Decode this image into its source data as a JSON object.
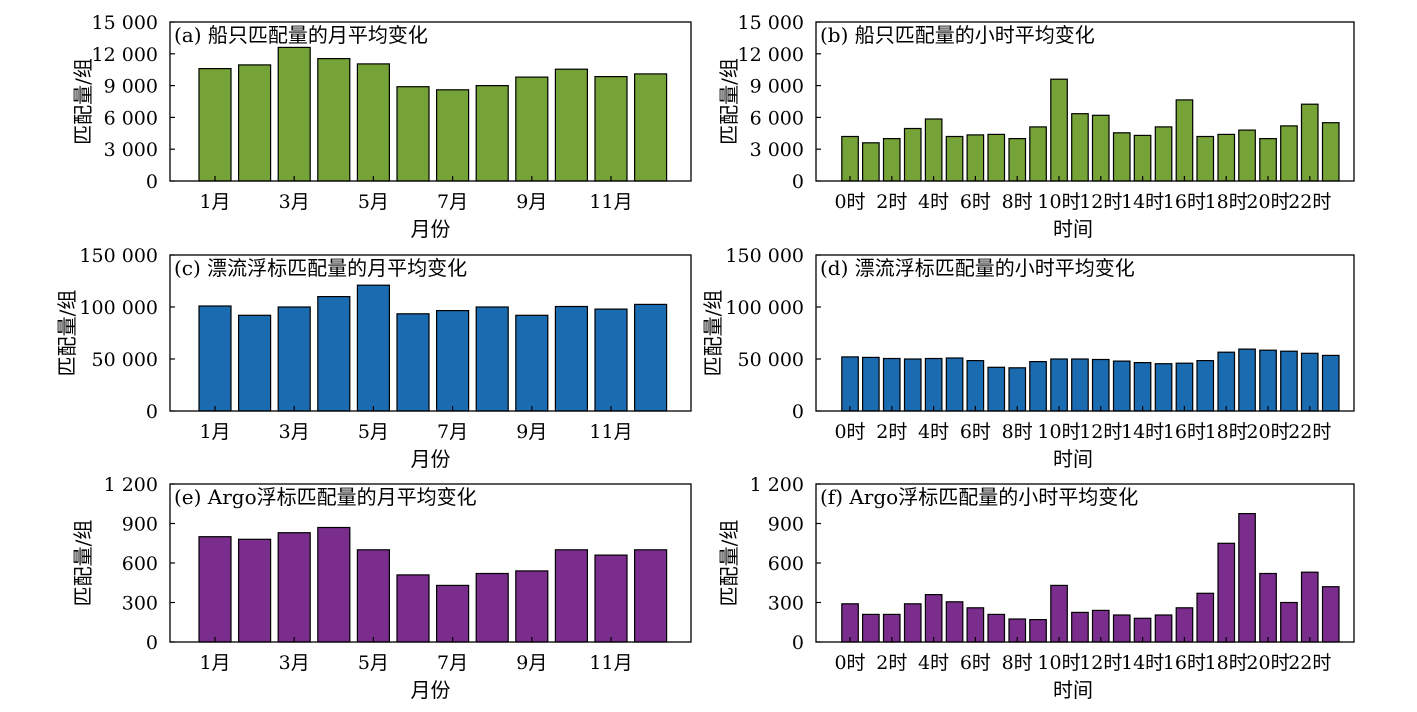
{
  "chart_data": [
    {
      "type": "bar",
      "title": "(a) 船只匹配量的月平均变化",
      "xlabel": "月份",
      "ylabel": "匹配量/组",
      "color": "#76a337",
      "ylim": [
        0,
        15000
      ],
      "yticks": [
        0,
        3000,
        6000,
        9000,
        12000,
        15000
      ],
      "ytick_labels": [
        "0",
        "3 000",
        "6 000",
        "9 000",
        "12 000",
        "15 000"
      ],
      "categories": [
        "1月",
        "2月",
        "3月",
        "4月",
        "5月",
        "6月",
        "7月",
        "8月",
        "9月",
        "10月",
        "11月",
        "12月"
      ],
      "xtick_labels": [
        "1月",
        "",
        "3月",
        "",
        "5月",
        "",
        "7月",
        "",
        "9月",
        "",
        "11月",
        ""
      ],
      "values": [
        10600,
        10950,
        12600,
        11550,
        11050,
        8900,
        8600,
        9000,
        9800,
        10550,
        9850,
        10100
      ]
    },
    {
      "type": "bar",
      "title": "(b) 船只匹配量的小时平均变化",
      "xlabel": "时间",
      "ylabel": "匹配量/组",
      "color": "#76a337",
      "ylim": [
        0,
        15000
      ],
      "yticks": [
        0,
        3000,
        6000,
        9000,
        12000,
        15000
      ],
      "ytick_labels": [
        "0",
        "3 000",
        "6 000",
        "9 000",
        "12 000",
        "15 000"
      ],
      "categories": [
        "0时",
        "1时",
        "2时",
        "3时",
        "4时",
        "5时",
        "6时",
        "7时",
        "8时",
        "9时",
        "10时",
        "11时",
        "12时",
        "13时",
        "14时",
        "15时",
        "16时",
        "17时",
        "18时",
        "19时",
        "20时",
        "21时",
        "22时",
        "23时"
      ],
      "xtick_labels": [
        "0时",
        "",
        "2时",
        "",
        "4时",
        "",
        "6时",
        "",
        "8时",
        "",
        "10时",
        "",
        "12时",
        "",
        "14时",
        "",
        "16时",
        "",
        "18时",
        "",
        "20时",
        "",
        "22时",
        ""
      ],
      "values": [
        4200,
        3600,
        4000,
        4950,
        5850,
        4200,
        4350,
        4400,
        4000,
        5100,
        9600,
        6350,
        6200,
        4550,
        4300,
        5100,
        7650,
        4200,
        4400,
        4800,
        4000,
        5200,
        7250,
        5500
      ]
    },
    {
      "type": "bar",
      "title": "(c) 漂流浮标匹配量的月平均变化",
      "xlabel": "月份",
      "ylabel": "匹配量/组",
      "color": "#1b6bb0",
      "ylim": [
        0,
        150000
      ],
      "yticks": [
        0,
        50000,
        100000,
        150000
      ],
      "ytick_labels": [
        "0",
        "50 000",
        "100 000",
        "150 000"
      ],
      "categories": [
        "1月",
        "2月",
        "3月",
        "4月",
        "5月",
        "6月",
        "7月",
        "8月",
        "9月",
        "10月",
        "11月",
        "12月"
      ],
      "xtick_labels": [
        "1月",
        "",
        "3月",
        "",
        "5月",
        "",
        "7月",
        "",
        "9月",
        "",
        "11月",
        ""
      ],
      "values": [
        101000,
        92000,
        100000,
        110000,
        121000,
        93500,
        96500,
        100000,
        92000,
        100500,
        98000,
        102500
      ]
    },
    {
      "type": "bar",
      "title": "(d) 漂流浮标匹配量的小时平均变化",
      "xlabel": "时间",
      "ylabel": "匹配量/组",
      "color": "#1b6bb0",
      "ylim": [
        0,
        150000
      ],
      "yticks": [
        0,
        50000,
        100000,
        150000
      ],
      "ytick_labels": [
        "0",
        "50 000",
        "100 000",
        "150 000"
      ],
      "categories": [
        "0时",
        "1时",
        "2时",
        "3时",
        "4时",
        "5时",
        "6时",
        "7时",
        "8时",
        "9时",
        "10时",
        "11时",
        "12时",
        "13时",
        "14时",
        "15时",
        "16时",
        "17时",
        "18时",
        "19时",
        "20时",
        "21时",
        "22时",
        "23时"
      ],
      "xtick_labels": [
        "0时",
        "",
        "2时",
        "",
        "4时",
        "",
        "6时",
        "",
        "8时",
        "",
        "10时",
        "",
        "12时",
        "",
        "14时",
        "",
        "16时",
        "",
        "18时",
        "",
        "20时",
        "",
        "22时",
        ""
      ],
      "values": [
        52000,
        51500,
        50500,
        50000,
        50500,
        51000,
        48500,
        42000,
        41500,
        47500,
        50000,
        50000,
        49500,
        48000,
        46500,
        45500,
        46000,
        48500,
        56500,
        59500,
        58500,
        57500,
        55500,
        53500
      ]
    },
    {
      "type": "bar",
      "title": "(e) Argo浮标匹配量的月平均变化",
      "xlabel": "月份",
      "ylabel": "匹配量/组",
      "color": "#7a2d8c",
      "ylim": [
        0,
        1200
      ],
      "yticks": [
        0,
        300,
        600,
        900,
        1200
      ],
      "ytick_labels": [
        "0",
        "300",
        "600",
        "900",
        "1 200"
      ],
      "categories": [
        "1月",
        "2月",
        "3月",
        "4月",
        "5月",
        "6月",
        "7月",
        "8月",
        "9月",
        "10月",
        "11月",
        "12月"
      ],
      "xtick_labels": [
        "1月",
        "",
        "3月",
        "",
        "5月",
        "",
        "7月",
        "",
        "9月",
        "",
        "11月",
        ""
      ],
      "values": [
        800,
        780,
        830,
        870,
        700,
        510,
        430,
        520,
        540,
        700,
        660,
        700
      ]
    },
    {
      "type": "bar",
      "title": "(f) Argo浮标匹配量的小时平均变化",
      "xlabel": "时间",
      "ylabel": "匹配量/组",
      "color": "#7a2d8c",
      "ylim": [
        0,
        1200
      ],
      "yticks": [
        0,
        300,
        600,
        900,
        1200
      ],
      "ytick_labels": [
        "0",
        "300",
        "600",
        "900",
        "1 200"
      ],
      "categories": [
        "0时",
        "1时",
        "2时",
        "3时",
        "4时",
        "5时",
        "6时",
        "7时",
        "8时",
        "9时",
        "10时",
        "11时",
        "12时",
        "13时",
        "14时",
        "15时",
        "16时",
        "17时",
        "18时",
        "19时",
        "20时",
        "21时",
        "22时",
        "23时"
      ],
      "xtick_labels": [
        "0时",
        "",
        "2时",
        "",
        "4时",
        "",
        "6时",
        "",
        "8时",
        "",
        "10时",
        "",
        "12时",
        "",
        "14时",
        "",
        "16时",
        "",
        "18时",
        "",
        "20时",
        "",
        "22时",
        ""
      ],
      "values": [
        290,
        210,
        210,
        290,
        360,
        305,
        260,
        210,
        175,
        170,
        430,
        225,
        240,
        205,
        180,
        205,
        260,
        370,
        750,
        975,
        520,
        300,
        530,
        420
      ]
    }
  ]
}
